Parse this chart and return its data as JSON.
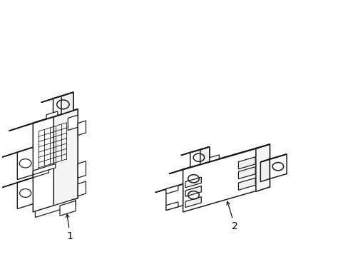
{
  "background_color": "#ffffff",
  "line_color": "#1a1a1a",
  "line_width": 1.1,
  "label_fontsize": 10,
  "label_color": "#000000",
  "fig_width": 4.89,
  "fig_height": 3.6,
  "dpi": 100,
  "comp1_ox": 0.08,
  "comp1_oy": 0.13,
  "comp2_ox": 0.52,
  "comp2_oy": 0.15
}
